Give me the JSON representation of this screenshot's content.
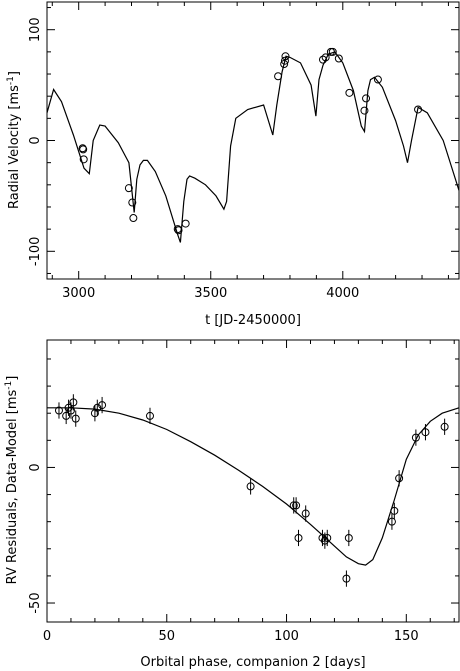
{
  "chart_data": [
    {
      "type": "scatter",
      "xlabel": "t [JD-2450000]",
      "ylabel": "Radial Velocity [ms",
      "ylabel_sup": "-1",
      "ylabel_close": "]",
      "xlim": [
        2880,
        4440
      ],
      "ylim": [
        -125,
        125
      ],
      "xticks": [
        3000,
        3500,
        4000
      ],
      "yticks": [
        -100,
        0,
        100
      ],
      "points": [
        {
          "x": 3015,
          "y": -7
        },
        {
          "x": 3017,
          "y": -8
        },
        {
          "x": 3019,
          "y": -17
        },
        {
          "x": 3190,
          "y": -43
        },
        {
          "x": 3203,
          "y": -56
        },
        {
          "x": 3207,
          "y": -70
        },
        {
          "x": 3375,
          "y": -80
        },
        {
          "x": 3378,
          "y": -81
        },
        {
          "x": 3405,
          "y": -75
        },
        {
          "x": 3755,
          "y": 58
        },
        {
          "x": 3778,
          "y": 69
        },
        {
          "x": 3781,
          "y": 72
        },
        {
          "x": 3783,
          "y": 76
        },
        {
          "x": 3925,
          "y": 73
        },
        {
          "x": 3935,
          "y": 75
        },
        {
          "x": 3955,
          "y": 80
        },
        {
          "x": 3962,
          "y": 80
        },
        {
          "x": 3985,
          "y": 74
        },
        {
          "x": 4025,
          "y": 43
        },
        {
          "x": 4082,
          "y": 27
        },
        {
          "x": 4088,
          "y": 38
        },
        {
          "x": 4133,
          "y": 55
        },
        {
          "x": 4285,
          "y": 28
        }
      ],
      "model_curve": {
        "x": [
          2880,
          2905,
          2935,
          2980,
          3020,
          3040,
          3055,
          3080,
          3100,
          3150,
          3190,
          3210,
          3220,
          3232,
          3245,
          3260,
          3290,
          3330,
          3375,
          3385,
          3398,
          3410,
          3420,
          3440,
          3480,
          3520,
          3550,
          3560,
          3575,
          3595,
          3640,
          3700,
          3735,
          3750,
          3770,
          3785,
          3800,
          3840,
          3880,
          3898,
          3910,
          3925,
          3945,
          3970,
          4000,
          4040,
          4070,
          4082,
          4095,
          4105,
          4120,
          4150,
          4200,
          4230,
          4245,
          4260,
          4285,
          4320,
          4380,
          4440
        ],
        "y": [
          25,
          46,
          35,
          5,
          -25,
          -30,
          0,
          14,
          13,
          -2,
          -20,
          -65,
          -35,
          -22,
          -18,
          -18,
          -28,
          -50,
          -85,
          -92,
          -55,
          -35,
          -32,
          -34,
          -40,
          -50,
          -62,
          -55,
          -5,
          20,
          28,
          32,
          5,
          32,
          62,
          76,
          75,
          70,
          50,
          22,
          55,
          68,
          78,
          80,
          70,
          45,
          13,
          8,
          45,
          55,
          57,
          48,
          18,
          -5,
          -20,
          0,
          30,
          25,
          0,
          -45
        ]
      }
    },
    {
      "type": "scatter",
      "xlabel": "Orbital phase, companion 2 [days]",
      "ylabel": "RV Residuals, Data-Model [ms",
      "ylabel_sup": "-1",
      "ylabel_close": "]",
      "xlim": [
        0,
        172
      ],
      "ylim": [
        -57,
        47
      ],
      "xticks": [
        0,
        50,
        100,
        150
      ],
      "yticks": [
        -50,
        0
      ],
      "points": [
        {
          "x": 5,
          "y": 21,
          "err": 3
        },
        {
          "x": 8,
          "y": 19,
          "err": 3
        },
        {
          "x": 9,
          "y": 22,
          "err": 3
        },
        {
          "x": 10,
          "y": 21,
          "err": 3
        },
        {
          "x": 11,
          "y": 24,
          "err": 3
        },
        {
          "x": 12,
          "y": 18,
          "err": 3
        },
        {
          "x": 20,
          "y": 20,
          "err": 3
        },
        {
          "x": 21,
          "y": 22,
          "err": 3
        },
        {
          "x": 23,
          "y": 23,
          "err": 3
        },
        {
          "x": 43,
          "y": 19,
          "err": 3
        },
        {
          "x": 85,
          "y": -7,
          "err": 3
        },
        {
          "x": 103,
          "y": -14,
          "err": 3
        },
        {
          "x": 104,
          "y": -14,
          "err": 3
        },
        {
          "x": 105,
          "y": -26,
          "err": 3
        },
        {
          "x": 108,
          "y": -17,
          "err": 3
        },
        {
          "x": 115,
          "y": -26,
          "err": 3
        },
        {
          "x": 116,
          "y": -27,
          "err": 3
        },
        {
          "x": 117,
          "y": -26,
          "err": 3
        },
        {
          "x": 125,
          "y": -41,
          "err": 3
        },
        {
          "x": 126,
          "y": -26,
          "err": 3
        },
        {
          "x": 144,
          "y": -20,
          "err": 3
        },
        {
          "x": 145,
          "y": -16,
          "err": 3
        },
        {
          "x": 147,
          "y": -4,
          "err": 3
        },
        {
          "x": 154,
          "y": 11,
          "err": 3
        },
        {
          "x": 158,
          "y": 13,
          "err": 3
        },
        {
          "x": 166,
          "y": 15,
          "err": 3
        }
      ],
      "model_curve": {
        "x": [
          0,
          10,
          20,
          30,
          40,
          50,
          60,
          70,
          80,
          90,
          100,
          110,
          115,
          120,
          125,
          130,
          133,
          136,
          140,
          145,
          150,
          155,
          160,
          165,
          172
        ],
        "y": [
          22,
          22,
          21.5,
          20,
          17.5,
          14,
          9.5,
          4.5,
          -1,
          -7,
          -13.5,
          -21,
          -25,
          -29,
          -33,
          -35.5,
          -36,
          -34,
          -26,
          -12,
          3,
          12,
          17,
          20,
          22
        ]
      }
    }
  ]
}
